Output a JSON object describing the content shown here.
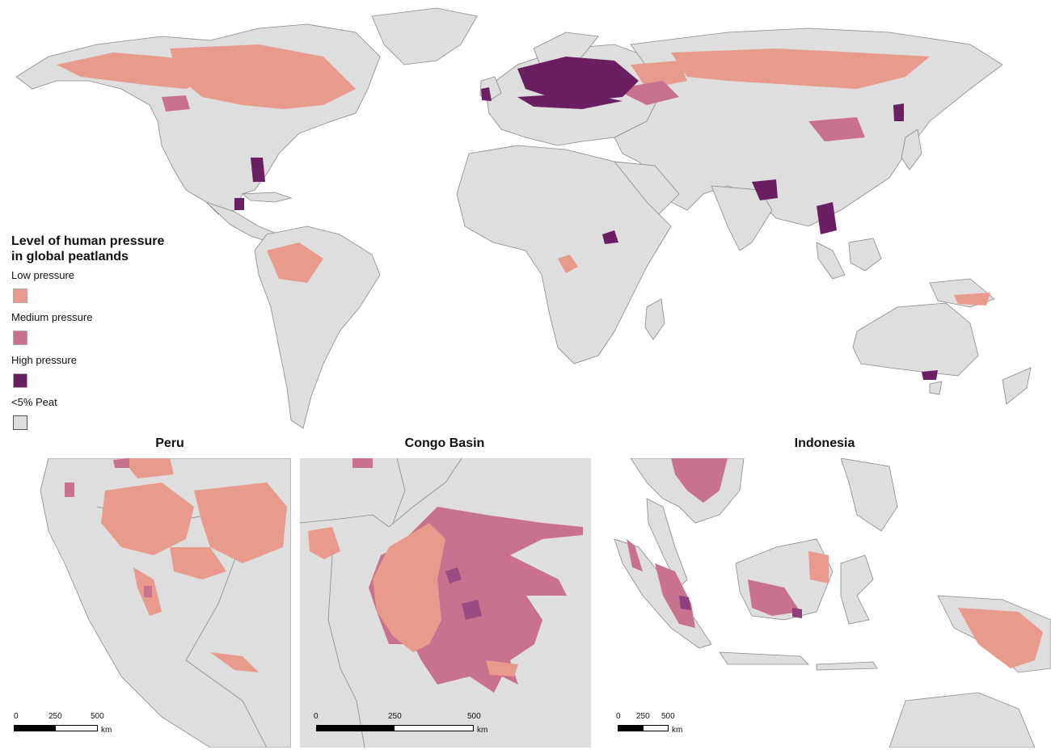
{
  "legend": {
    "title_line1": "Level of human pressure",
    "title_line2": "in global peatlands",
    "items": [
      {
        "label": "Low pressure",
        "color": "#e89a8c"
      },
      {
        "label": "Medium pressure",
        "color": "#c9728f"
      },
      {
        "label": "High pressure",
        "color": "#6b1f63"
      },
      {
        "label": "<5% Peat",
        "color": "#dedede"
      }
    ]
  },
  "colors": {
    "land": "#dedede",
    "border": "#8a8a8a",
    "water": "#ffffff",
    "low": "#e89a8c",
    "medium": "#c9728f",
    "high": "#6b1f63"
  },
  "insets": [
    {
      "title": "Peru",
      "scale": [
        "0",
        "250",
        "500"
      ],
      "unit": "km"
    },
    {
      "title": "Congo Basin",
      "scale": [
        "0",
        "250",
        "500"
      ],
      "unit": "km"
    },
    {
      "title": "Indonesia",
      "scale": [
        "0",
        "250",
        "500"
      ],
      "unit": "km"
    }
  ]
}
